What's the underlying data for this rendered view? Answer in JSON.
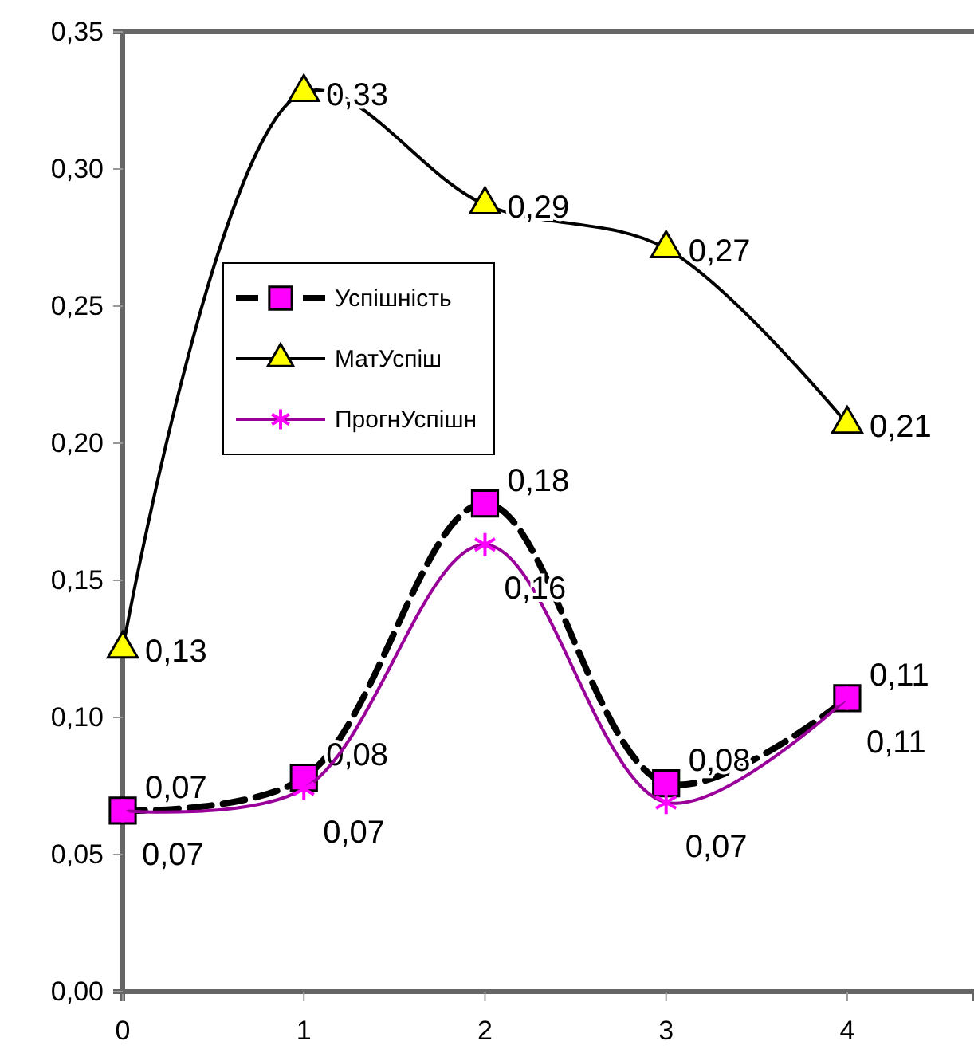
{
  "chart_data": {
    "type": "line",
    "x": [
      0,
      1,
      2,
      3,
      4
    ],
    "xlim": [
      0,
      4.7
    ],
    "xticks": [
      0,
      1,
      2,
      3,
      4
    ],
    "ylim": [
      0,
      0.35
    ],
    "yticks": [
      {
        "value": 0,
        "label": "0,00"
      },
      {
        "value": 0.05,
        "label": "0,05"
      },
      {
        "value": 0.1,
        "label": "0,10"
      },
      {
        "value": 0.15,
        "label": "0,15"
      },
      {
        "value": 0.2,
        "label": "0,20"
      },
      {
        "value": 0.25,
        "label": "0,25"
      },
      {
        "value": 0.3,
        "label": "0,30"
      },
      {
        "value": 0.35,
        "label": "0,35"
      }
    ],
    "grid": false,
    "legend": "left",
    "series": [
      {
        "name": "Успішність",
        "color": "#000000",
        "marker": "square",
        "line_style": "dashed",
        "values": [
          0.066,
          0.078,
          0.178,
          0.076,
          0.107
        ],
        "value_labels": [
          "0,07",
          "0,08",
          "0,18",
          "0,08",
          "0,11"
        ]
      },
      {
        "name": "МатУспіш",
        "color": "#000000",
        "marker": "triangle",
        "line_style": "solid",
        "values": [
          0.125,
          0.328,
          0.287,
          0.271,
          0.207
        ],
        "value_labels": [
          "0,13",
          "0,33",
          "0,29",
          "0,27",
          "0,21"
        ]
      },
      {
        "name": "ПрогнУспішн",
        "color": "#990099",
        "marker": "cross",
        "line_style": "solid",
        "values": [
          0.066,
          0.074,
          0.163,
          0.069,
          0.107
        ],
        "value_labels": [
          "0,07",
          "0,07",
          "0,16",
          "0,07",
          "0,11"
        ]
      }
    ]
  }
}
